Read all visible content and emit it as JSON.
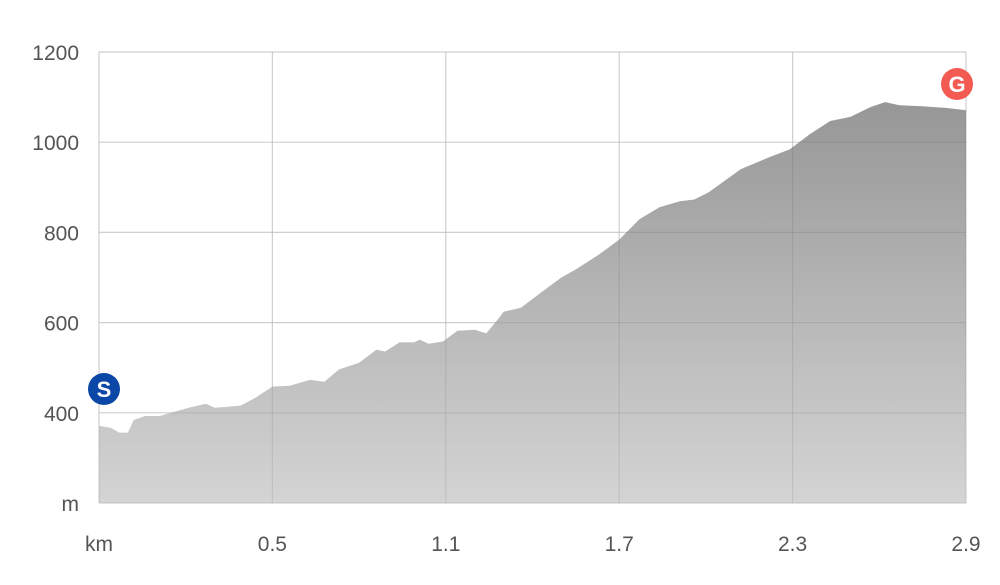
{
  "chart_data": {
    "type": "area",
    "title": "",
    "xlabel": "km",
    "ylabel": "m",
    "xlim": [
      -0.1,
      2.9
    ],
    "ylim": [
      200,
      1200
    ],
    "grid": true,
    "x_ticks": [
      {
        "value": -0.1,
        "label": "km"
      },
      {
        "value": 0.5,
        "label": "0.5"
      },
      {
        "value": 1.1,
        "label": "1.1"
      },
      {
        "value": 1.7,
        "label": "1.7"
      },
      {
        "value": 2.3,
        "label": "2.3"
      },
      {
        "value": 2.9,
        "label": "2.9"
      }
    ],
    "y_ticks": [
      {
        "value": 200,
        "label": "m"
      },
      {
        "value": 400,
        "label": "400"
      },
      {
        "value": 600,
        "label": "600"
      },
      {
        "value": 800,
        "label": "800"
      },
      {
        "value": 1000,
        "label": "1000"
      },
      {
        "value": 1200,
        "label": "1200"
      }
    ],
    "x": [
      -0.1,
      -0.06,
      -0.03,
      0.0,
      0.02,
      0.06,
      0.11,
      0.16,
      0.21,
      0.27,
      0.3,
      0.34,
      0.39,
      0.44,
      0.5,
      0.56,
      0.63,
      0.68,
      0.73,
      0.8,
      0.86,
      0.89,
      0.94,
      0.99,
      1.01,
      1.04,
      1.09,
      1.14,
      1.2,
      1.24,
      1.28,
      1.3,
      1.36,
      1.43,
      1.5,
      1.55,
      1.63,
      1.7,
      1.77,
      1.84,
      1.91,
      1.96,
      2.01,
      2.12,
      2.22,
      2.29,
      2.36,
      2.43,
      2.5,
      2.57,
      2.62,
      2.67,
      2.74,
      2.83,
      2.9
    ],
    "values": [
      371,
      367,
      356,
      356,
      384,
      393,
      393,
      402,
      411,
      420,
      411,
      413,
      416,
      433,
      458,
      460,
      473,
      469,
      496,
      511,
      540,
      536,
      556,
      556,
      562,
      553,
      558,
      582,
      584,
      576,
      607,
      624,
      633,
      667,
      700,
      718,
      751,
      784,
      829,
      856,
      869,
      873,
      889,
      940,
      967,
      984,
      1018,
      1047,
      1056,
      1078,
      1089,
      1082,
      1080,
      1076,
      1071
    ],
    "markers": [
      {
        "label": "S",
        "meaning": "start",
        "color": "#0b47a6"
      },
      {
        "label": "G",
        "meaning": "goal",
        "color": "#f25a52"
      }
    ],
    "fill_colors": {
      "top": "#979797",
      "bottom": "#d4d4d4"
    },
    "grid_color": "#e2e2e2"
  }
}
